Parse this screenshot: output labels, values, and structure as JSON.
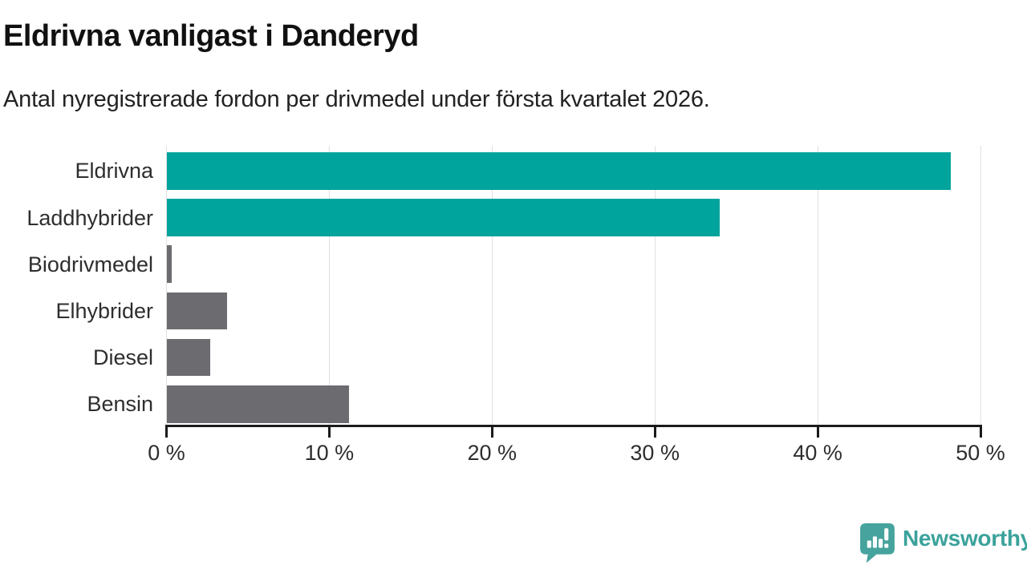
{
  "chart_data": {
    "type": "bar",
    "orientation": "horizontal",
    "title": "Eldrivna vanligast i Danderyd",
    "subtitle": "Antal nyregistrerade fordon per drivmedel under första kvartalet 2026.",
    "categories": [
      "Eldrivna",
      "Laddhybrider",
      "Biodrivmedel",
      "Elhybrider",
      "Diesel",
      "Bensin"
    ],
    "values": [
      48.2,
      34,
      0.3,
      3.7,
      2.7,
      11.2
    ],
    "unit": "%",
    "xlim": [
      0,
      50
    ],
    "x_ticks": [
      0,
      10,
      20,
      30,
      40,
      50
    ],
    "x_tick_labels": [
      "0 %",
      "10 %",
      "20 %",
      "30 %",
      "40 %",
      "50 %"
    ],
    "grid": "vertical-light",
    "legend": "none",
    "bar_colors": [
      "#00a49c",
      "#00a49c",
      "#6b6b70",
      "#6b6b70",
      "#6b6b70",
      "#6b6b70"
    ],
    "colors": {
      "highlight": "#00a49c",
      "default": "#6b6b70",
      "gridline": "#e0e0e0",
      "axis": "#1b1b1b",
      "label": "#2e2e2e"
    }
  },
  "footer": {
    "brand": "Newsworthy",
    "brand_color": "#3ba29b",
    "icon": "newsworthy-bubble-barchart-icon",
    "icon_color": "#46a39d"
  }
}
